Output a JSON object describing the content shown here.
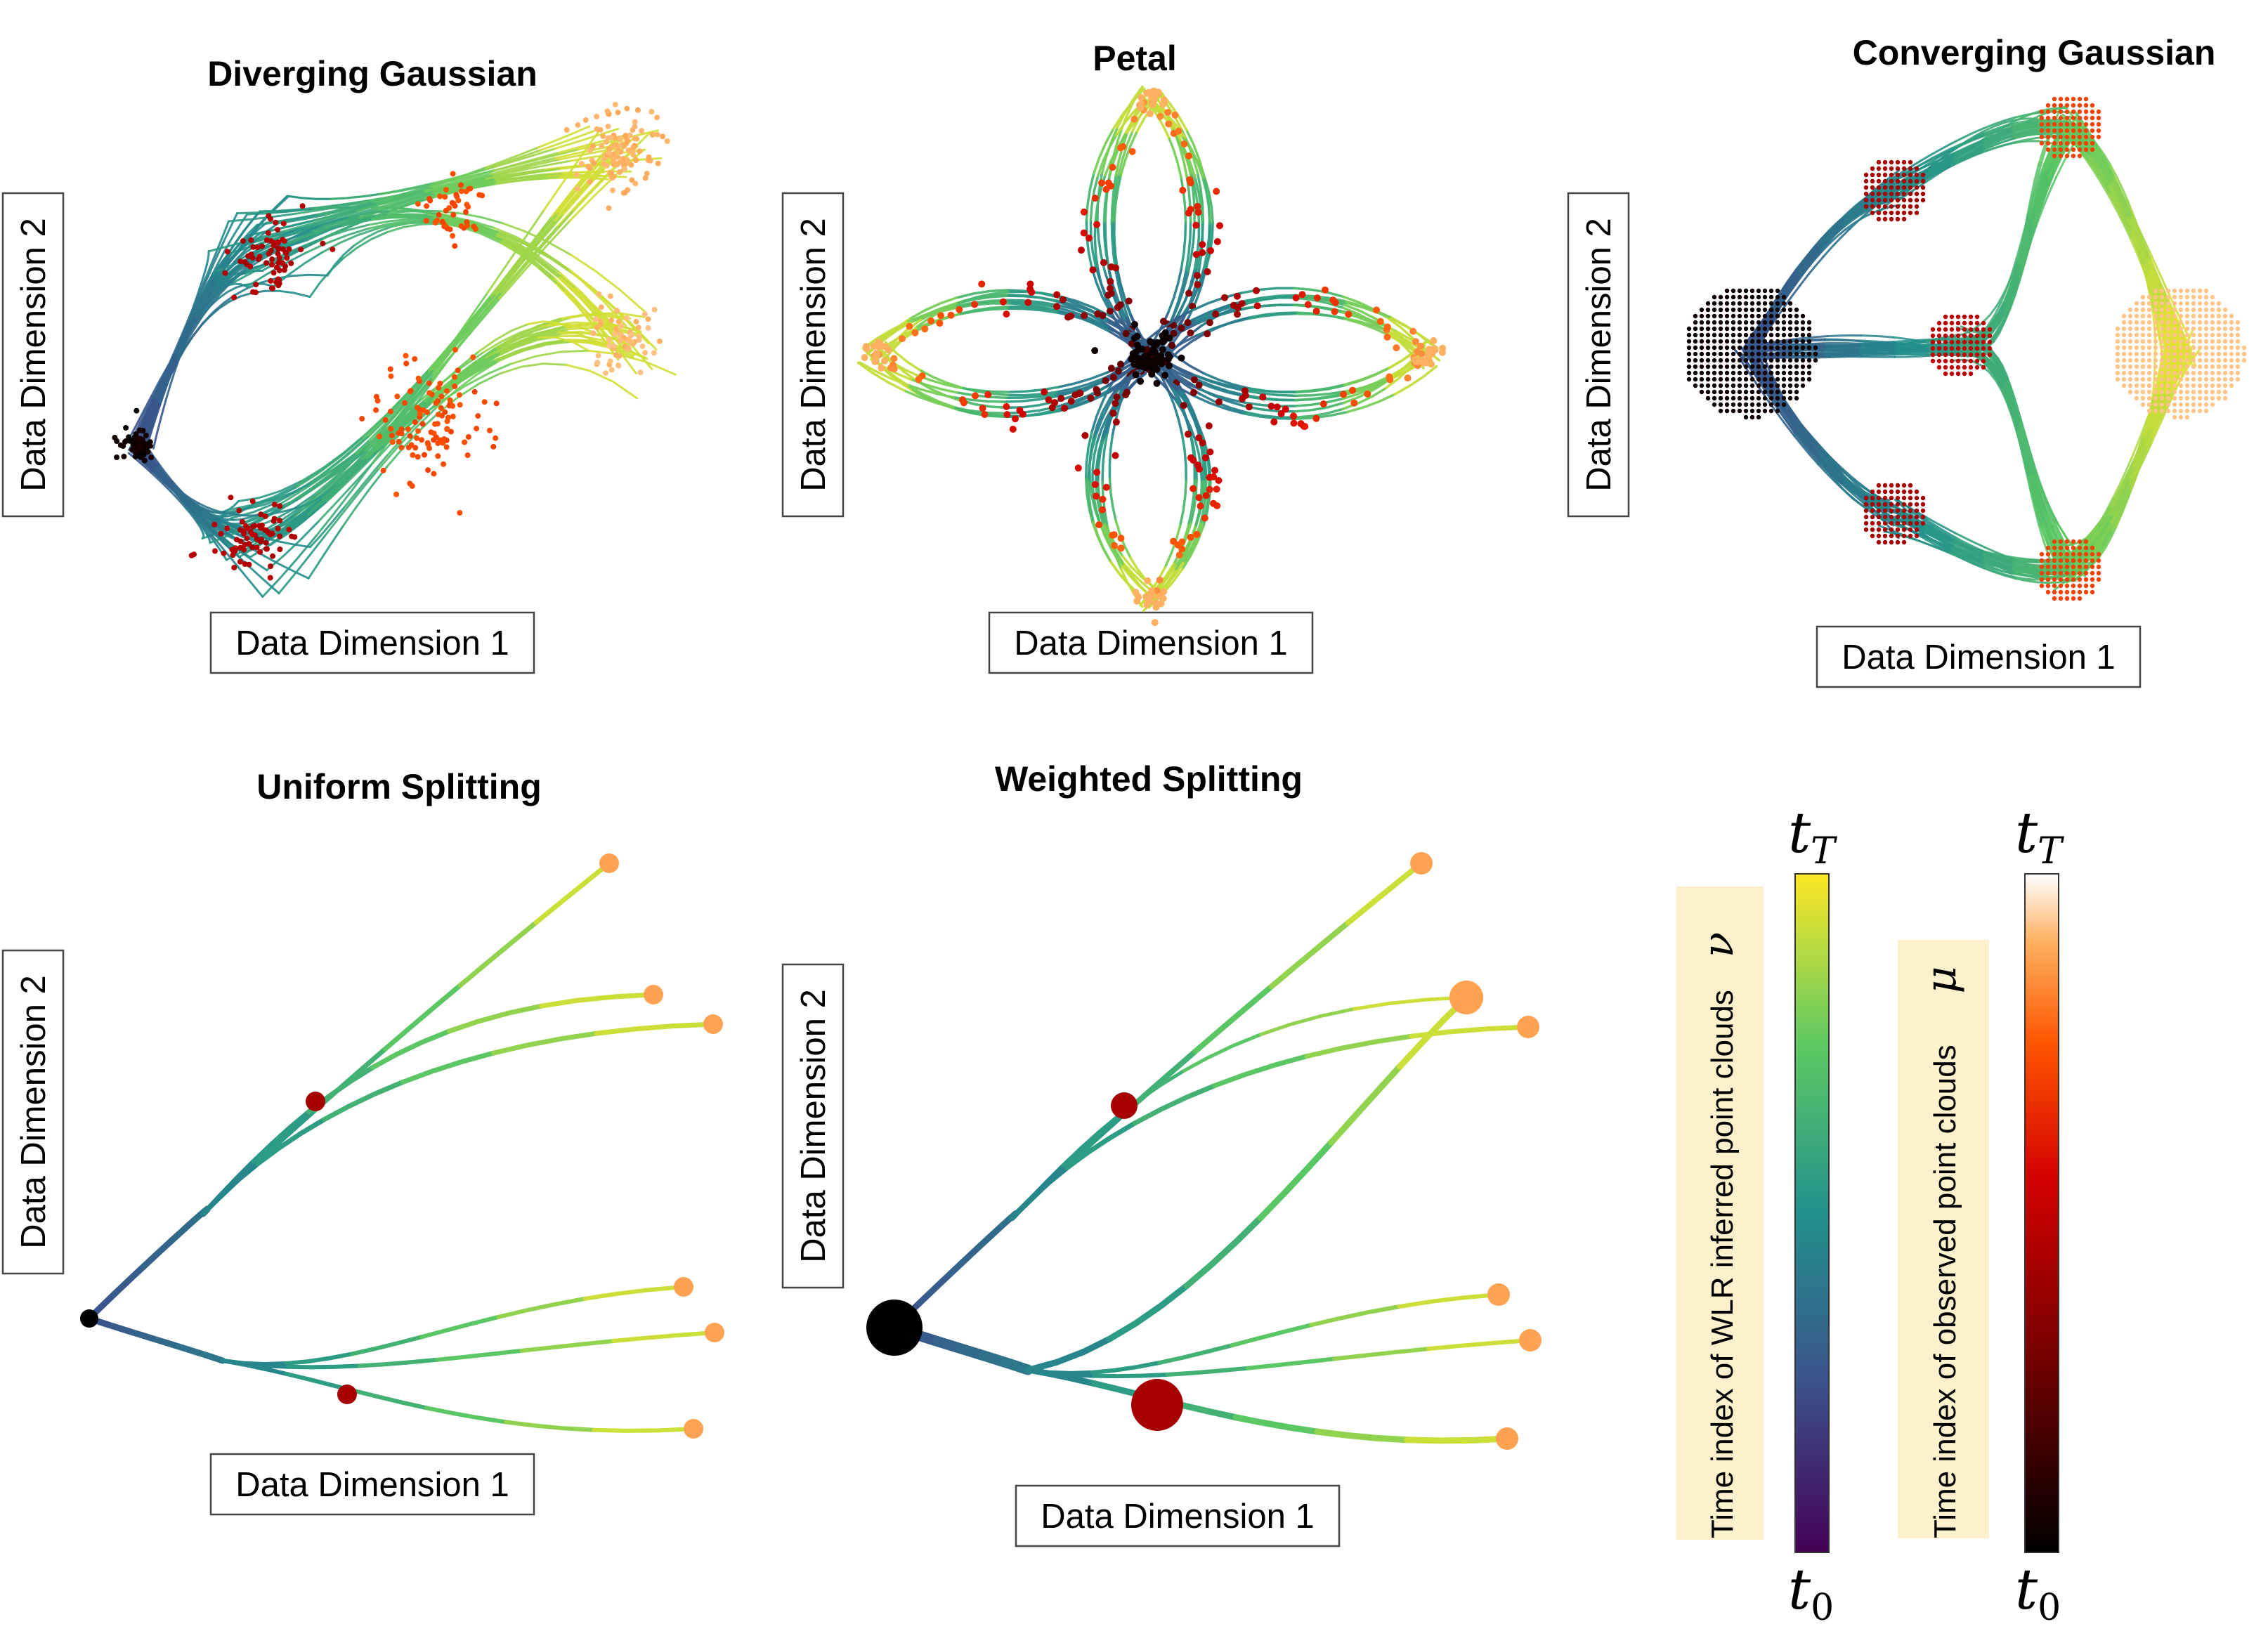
{
  "colors": {
    "inferred_colormap": [
      "#440154",
      "#3b528b",
      "#21918c",
      "#5ec962",
      "#fde725"
    ],
    "observed_colormap": [
      "#000000",
      "#7a0000",
      "#d40000",
      "#ff5500",
      "#ffb060",
      "#ffffff"
    ],
    "label_bg": "#fdf0cc"
  },
  "panels": {
    "diverging": {
      "title": "Diverging Gaussian",
      "xlabel": "Data Dimension 1",
      "ylabel": "Data Dimension 2"
    },
    "petal": {
      "title": "Petal",
      "xlabel": "Data Dimension 1",
      "ylabel": "Data Dimension 2"
    },
    "converging": {
      "title": "Converging Gaussian",
      "xlabel": "Data Dimension 1",
      "ylabel": "Data Dimension 2"
    },
    "uniform": {
      "title": "Uniform Splitting",
      "xlabel": "Data Dimension 1",
      "ylabel": "Data Dimension 2"
    },
    "weighted": {
      "title": "Weighted Splitting",
      "xlabel": "Data Dimension 1",
      "ylabel": "Data Dimension 2"
    }
  },
  "colorbars": {
    "inferred": {
      "label": "Time index of WLR inferred point clouds",
      "symbol": "ν",
      "top": "t",
      "top_sub": "T",
      "bottom": "t",
      "bottom_sub": "0"
    },
    "observed": {
      "label": "Time index of observed point clouds",
      "symbol": "μ",
      "top": "t",
      "top_sub": "T",
      "bottom": "t",
      "bottom_sub": "0"
    }
  },
  "chart_data": [
    {
      "type": "scatter",
      "title": "Diverging Gaussian",
      "xlabel": "Data Dimension 1",
      "ylabel": "Data Dimension 2",
      "description_series": [
        "inferred trajectories",
        "observed point clouds"
      ],
      "clusters": [
        {
          "x": 0,
          "y": 0,
          "time": 0.0
        },
        {
          "x": 1.8,
          "y": 3.0,
          "time": 0.25
        },
        {
          "x": 1.8,
          "y": -1.5,
          "time": 0.25
        },
        {
          "x": 4.5,
          "y": 3.5,
          "time": 0.5
        },
        {
          "x": 4.5,
          "y": 0.2,
          "time": 0.5
        },
        {
          "x": 7.5,
          "y": 4.5,
          "time": 1.0
        },
        {
          "x": 7.5,
          "y": 1.5,
          "time": 1.0
        }
      ]
    },
    {
      "type": "scatter",
      "title": "Petal",
      "xlabel": "Data Dimension 1",
      "ylabel": "Data Dimension 2",
      "petal_tips": [
        {
          "x": 0,
          "y": 1,
          "time": 1.0
        },
        {
          "x": 0,
          "y": -1,
          "time": 1.0
        },
        {
          "x": 1,
          "y": 0,
          "time": 1.0
        },
        {
          "x": -1,
          "y": 0,
          "time": 1.0
        }
      ],
      "center": {
        "x": 0,
        "y": 0,
        "time": 0.0
      }
    },
    {
      "type": "scatter",
      "title": "Converging Gaussian",
      "xlabel": "Data Dimension 1",
      "ylabel": "Data Dimension 2",
      "clusters": [
        {
          "x": 0,
          "y": 0,
          "time": 0.0
        },
        {
          "x": 1.5,
          "y": 1.5,
          "time": 0.25
        },
        {
          "x": 1.5,
          "y": -1.5,
          "time": 0.25
        },
        {
          "x": 2.2,
          "y": 0,
          "time": 0.5
        },
        {
          "x": 3.0,
          "y": 2.2,
          "time": 0.75
        },
        {
          "x": 3.0,
          "y": -2.2,
          "time": 0.75
        },
        {
          "x": 4.5,
          "y": 0,
          "time": 1.0
        }
      ]
    },
    {
      "type": "line",
      "title": "Uniform Splitting",
      "xlabel": "Data Dimension 1",
      "ylabel": "Data Dimension 2",
      "nodes": [
        {
          "id": "root",
          "x": 0,
          "y": 0,
          "time": 0.0,
          "weight": 1
        },
        {
          "id": "up_mid",
          "x": 3.2,
          "y": 3.0,
          "time": 0.4,
          "weight": 1
        },
        {
          "id": "down_mid",
          "x": 3.6,
          "y": -1.1,
          "time": 0.4,
          "weight": 1
        },
        {
          "id": "u1",
          "x": 7.5,
          "y": 6.4,
          "time": 1.0,
          "weight": 1
        },
        {
          "id": "u2",
          "x": 8.1,
          "y": 4.5,
          "time": 1.0,
          "weight": 1
        },
        {
          "id": "u3",
          "x": 8.6,
          "y": 4.1,
          "time": 1.0,
          "weight": 1
        },
        {
          "id": "d1",
          "x": 8.5,
          "y": 0.5,
          "time": 1.0,
          "weight": 1
        },
        {
          "id": "d2",
          "x": 8.8,
          "y": -0.2,
          "time": 1.0,
          "weight": 1
        },
        {
          "id": "d3",
          "x": 8.6,
          "y": -1.5,
          "time": 1.0,
          "weight": 1
        }
      ]
    },
    {
      "type": "line",
      "title": "Weighted Splitting",
      "xlabel": "Data Dimension 1",
      "ylabel": "Data Dimension 2",
      "nodes": [
        {
          "id": "root",
          "x": 0,
          "y": 0,
          "time": 0.0,
          "weight": 3
        },
        {
          "id": "up_mid",
          "x": 3.2,
          "y": 3.0,
          "time": 0.4,
          "weight": 1
        },
        {
          "id": "down_mid",
          "x": 3.6,
          "y": -1.1,
          "time": 0.4,
          "weight": 2
        },
        {
          "id": "u1",
          "x": 7.5,
          "y": 6.4,
          "time": 1.0,
          "weight": 1
        },
        {
          "id": "u2",
          "x": 8.1,
          "y": 4.5,
          "time": 1.0,
          "weight": 1.6
        },
        {
          "id": "u3",
          "x": 8.6,
          "y": 4.1,
          "time": 1.0,
          "weight": 1
        },
        {
          "id": "d1",
          "x": 8.5,
          "y": 0.5,
          "time": 1.0,
          "weight": 1
        },
        {
          "id": "d2",
          "x": 8.8,
          "y": -0.2,
          "time": 1.0,
          "weight": 1
        },
        {
          "id": "d3",
          "x": 8.6,
          "y": -1.5,
          "time": 1.0,
          "weight": 1
        }
      ]
    }
  ]
}
